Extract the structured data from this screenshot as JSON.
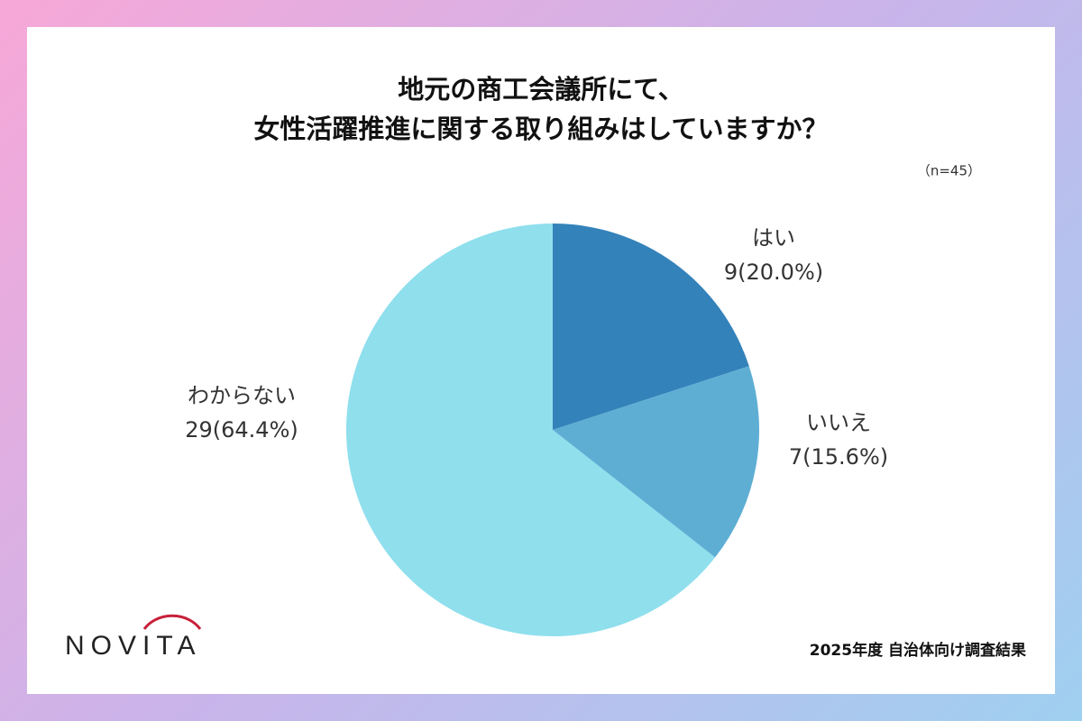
{
  "chart_data": {
    "type": "pie",
    "title": [
      "地元の商工会議所にて、",
      "女性活躍推進に関する取り組みはしていますか？"
    ],
    "subtitle": "（n=45）",
    "categories": [
      "はい",
      "いいえ",
      "わからない"
    ],
    "values": [
      20.0,
      15.6,
      64.4
    ],
    "value_labels": [
      "9(20.0%)",
      "7(15.6%)",
      "29(64.4%)"
    ],
    "colors": [
      "#3482ba",
      "#5eaed4",
      "#8fdfed"
    ]
  },
  "logo": "NOVITA",
  "footer": "2025年度 自治体向け調査結果"
}
